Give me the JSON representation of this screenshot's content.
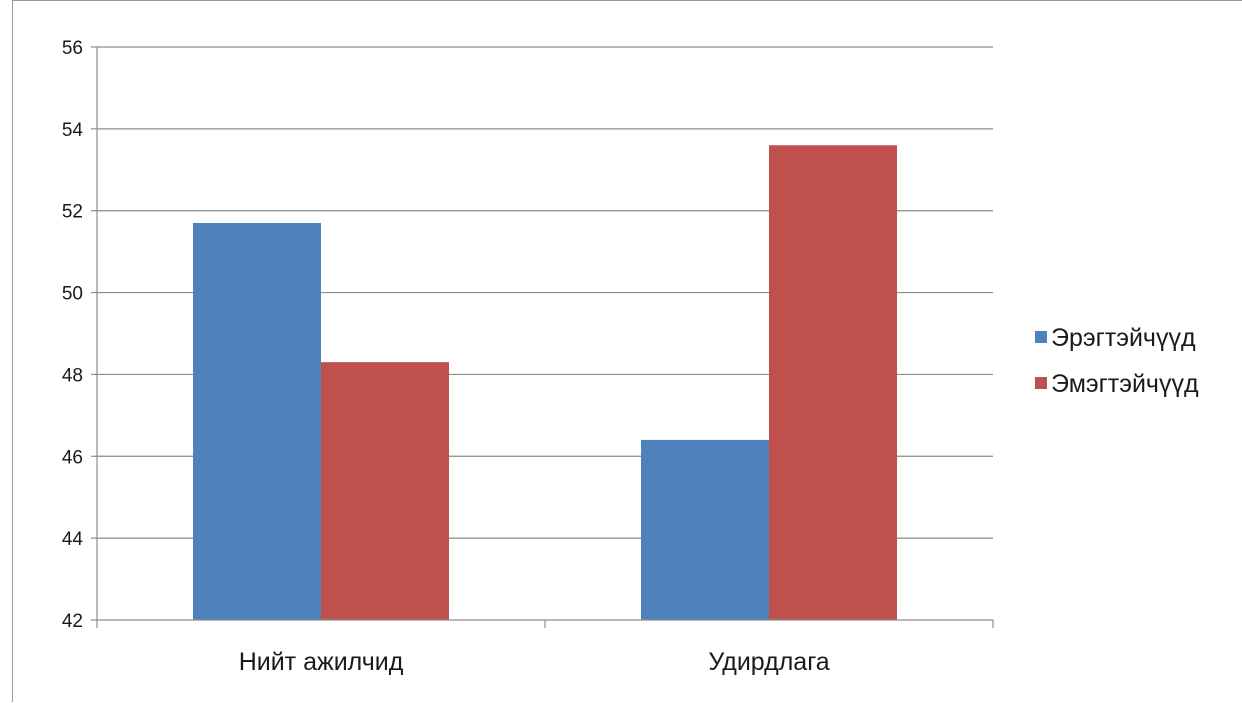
{
  "chart_data": {
    "type": "bar",
    "title": "",
    "xlabel": "",
    "ylabel": "",
    "categories": [
      "Нийт ажилчид",
      "Удирдлага"
    ],
    "series": [
      {
        "name": "Эрэгтэйчүүд",
        "values": [
          51.7,
          46.4
        ],
        "color": "#4f81bd"
      },
      {
        "name": "Эмэгтэйчүүд",
        "values": [
          48.3,
          53.6
        ],
        "color": "#c0504d"
      }
    ],
    "ylim": [
      42,
      56
    ],
    "yticks": [
      42,
      44,
      46,
      48,
      50,
      52,
      54,
      56
    ],
    "grid": true,
    "legend_position": "right"
  }
}
